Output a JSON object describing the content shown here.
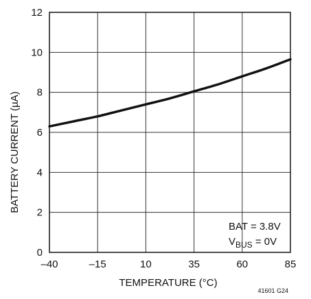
{
  "chart_data": {
    "type": "line",
    "title": "",
    "xlabel": "TEMPERATURE (°C)",
    "ylabel": "BATTERY CURRENT (µA)",
    "xlim": [
      -40,
      85
    ],
    "ylim": [
      0,
      12
    ],
    "x_ticks": [
      -40,
      -15,
      10,
      35,
      60,
      85
    ],
    "x_tick_labels": [
      "–40",
      "–15",
      "10",
      "35",
      "60",
      "85"
    ],
    "y_ticks": [
      0,
      2,
      4,
      6,
      8,
      10,
      12
    ],
    "y_tick_labels": [
      "0",
      "2",
      "4",
      "6",
      "8",
      "10",
      "12"
    ],
    "grid": true,
    "series": [
      {
        "x": [
          -40,
          -27.5,
          -15,
          -2.5,
          10,
          22.5,
          35,
          47.5,
          60,
          72.5,
          85
        ],
        "y": [
          6.3,
          6.55,
          6.8,
          7.1,
          7.4,
          7.7,
          8.05,
          8.4,
          8.8,
          9.2,
          9.65
        ]
      }
    ],
    "annotations": {
      "bat": "BAT = 3.8V",
      "vbus_main": "V",
      "vbus_sub": "BUS",
      "vbus_rest": " = 0V"
    },
    "figure_code": "41601 G24",
    "colors": {
      "line": "#111111",
      "grid": "#333333"
    }
  }
}
